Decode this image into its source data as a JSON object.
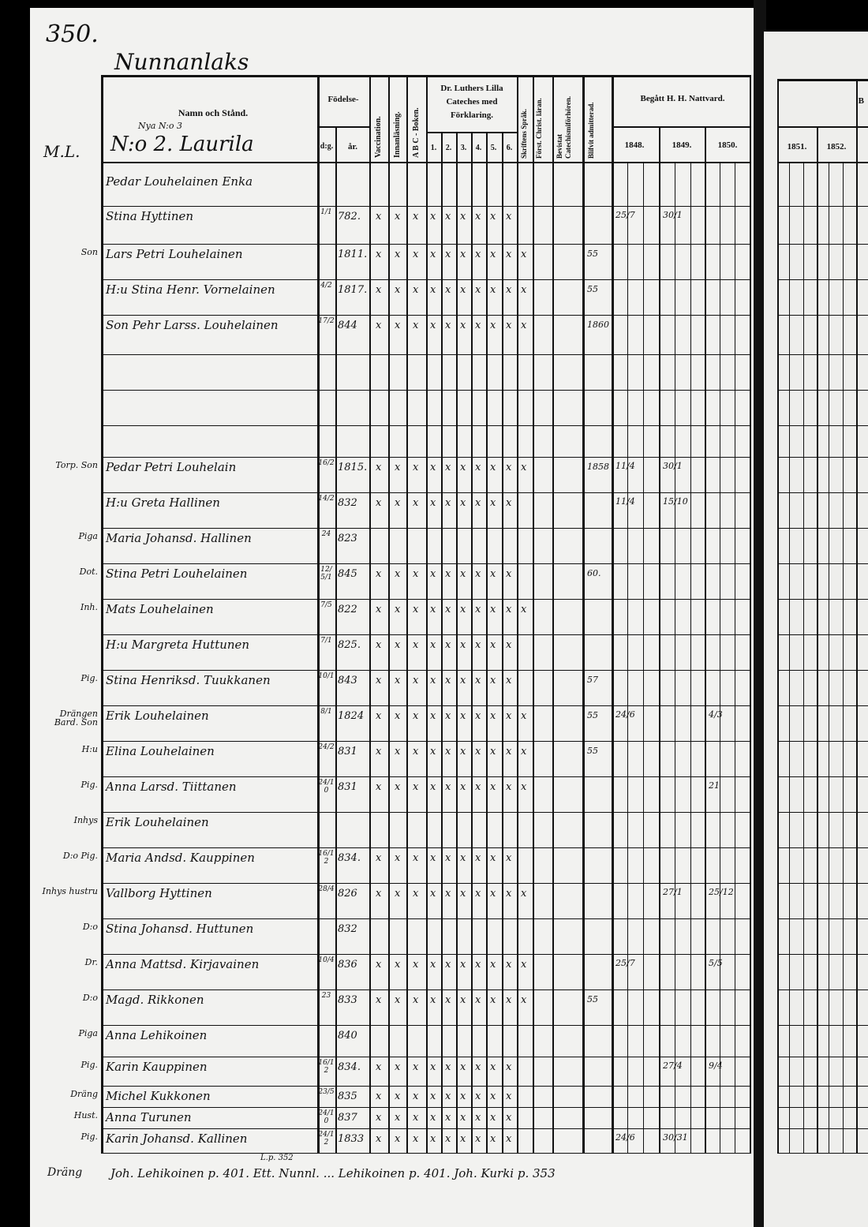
{
  "page_number": "350.",
  "village": "Nunnanlaks",
  "header": {
    "name_col": "Namn och Stånd.",
    "birth": "Födelse-",
    "day": "d:g.",
    "year": "år.",
    "vaccination": "Vaccination.",
    "innanlasning": "Innanläsning.",
    "abc": "A B C - Boken.",
    "catechism": "Dr. Luthers Lilla Cateches med Förklaring.",
    "catechism_parts": [
      "1.",
      "2.",
      "3.",
      "4.",
      "5.",
      "6."
    ],
    "skriftens": "Skriftens Språk.",
    "forst": "Först. Christ. läran.",
    "bevistat": "Bevistat Catechismiförhören.",
    "blifvit": "Blifvit admitterad.",
    "communion": "Begått H. H. Nattvard.",
    "years": [
      "1848.",
      "1849.",
      "1850."
    ],
    "right_years": [
      "1851.",
      "1852."
    ],
    "right_partial": "B"
  },
  "household": {
    "left_note": "M.L.",
    "old_no": "Nya N:o 3",
    "title": "N:o 2. Laurila"
  },
  "rows": [
    {
      "left": "",
      "name": "Pedar Louhelainen Enka",
      "day": "",
      "year": "",
      "marks": 0
    },
    {
      "left": "",
      "name": "Stina Hyttinen",
      "day": "1/1",
      "year": "782.",
      "marks": 9,
      "adm": "",
      "c1": "25/7",
      "c2": "30/1"
    },
    {
      "left": "Son",
      "name": "Lars Petri Louhelainen",
      "day": "",
      "year": "1811.",
      "marks": 10,
      "adm": "55"
    },
    {
      "left": "",
      "name": "H:u Stina Henr. Vornelainen",
      "day": "4/2",
      "year": "1817.",
      "marks": 10,
      "adm": "55"
    },
    {
      "left": "",
      "name": "Son Pehr Larss. Louhelainen",
      "day": "17/2",
      "year": "844",
      "marks": 10,
      "adm": "1860"
    },
    {
      "left": "",
      "name": "",
      "day": "",
      "year": "",
      "marks": 0
    },
    {
      "left": "",
      "name": "",
      "day": "",
      "year": "",
      "marks": 0
    },
    {
      "left": "",
      "name": "",
      "day": "",
      "year": "",
      "marks": 0
    },
    {
      "left": "Torp. Son",
      "name": "Pedar Petri Louhelain",
      "day": "16/2",
      "year": "1815.",
      "marks": 10,
      "adm": "1858",
      "c1": "11/4",
      "c2": "30/1"
    },
    {
      "left": "",
      "name": "H:u Greta Hallinen",
      "day": "14/2",
      "year": "832",
      "marks": 9,
      "c1": "11/4",
      "c2": "15/10"
    },
    {
      "left": "Piga",
      "name": "Maria Johansd. Hallinen",
      "day": "24",
      "year": "823",
      "marks": 0
    },
    {
      "left": "Dot.",
      "name": "Stina Petri Louhelainen",
      "day": "12/5/1",
      "year": "845",
      "marks": 9,
      "adm": "60."
    },
    {
      "left": "Inh.",
      "name": "Mats Louhelainen",
      "day": "7/5",
      "year": "822",
      "marks": 10
    },
    {
      "left": "",
      "name": "H:u Margreta Huttunen",
      "day": "7/1",
      "year": "825.",
      "marks": 9
    },
    {
      "left": "Pig.",
      "name": "Stina Henriksd. Tuukkanen",
      "day": "10/1",
      "year": "843",
      "marks": 9,
      "adm": "57"
    },
    {
      "left": "Drängen Bard. Son",
      "name": "Erik Louhelainen",
      "day": "8/1",
      "year": "1824",
      "marks": 10,
      "adm": "55",
      "c1": "24/6",
      "c3": "4/3"
    },
    {
      "left": "H:u",
      "name": "Elina Louhelainen",
      "day": "24/2",
      "year": "831",
      "marks": 10,
      "adm": "55"
    },
    {
      "left": "Pig.",
      "name": "Anna Larsd. Tiittanen",
      "day": "24/10",
      "year": "831",
      "marks": 10,
      "c3": "21"
    },
    {
      "left": "Inhys",
      "name": "Erik Louhelainen",
      "day": "",
      "year": "",
      "marks": 0
    },
    {
      "left": "D:o Pig.",
      "name": "Maria Andsd. Kauppinen",
      "day": "16/12",
      "year": "834.",
      "marks": 9
    },
    {
      "left": "Inhys hustru",
      "name": "Vallborg Hyttinen",
      "day": "28/4",
      "year": "826",
      "marks": 10,
      "c2": "27/1",
      "c3": "25/12"
    },
    {
      "left": "D:o",
      "name": "Stina Johansd. Huttunen",
      "day": "",
      "year": "832",
      "marks": 0
    },
    {
      "left": "Dr.",
      "name": "Anna Mattsd. Kirjavainen",
      "day": "10/4",
      "year": "836",
      "marks": 10,
      "c1": "25/7",
      "c3": "5/5"
    },
    {
      "left": "D:o",
      "name": "Magd. Rikkonen",
      "day": "23",
      "year": "833",
      "marks": 10,
      "adm": "55"
    },
    {
      "left": "Piga",
      "name": "Anna Lehikoinen",
      "day": "",
      "year": "840",
      "marks": 0
    },
    {
      "left": "Pig.",
      "name": "Karin Kauppinen",
      "day": "16/12",
      "year": "834.",
      "marks": 9,
      "c2": "27/4",
      "c3": "9/4"
    },
    {
      "left": "Dräng",
      "name": "Michel Kukkonen",
      "day": "23/5",
      "year": "835",
      "marks": 9
    },
    {
      "left": "Hust.",
      "name": "Anna Turunen",
      "day": "24/10",
      "year": "837",
      "marks": 9
    },
    {
      "left": "Pig.",
      "name": "Karin Johansd. Kallinen",
      "day": "24/12",
      "year": "1833",
      "marks": 9,
      "c1": "24/6",
      "c2": "30/31"
    }
  ],
  "bottom_note": {
    "left": "Dräng",
    "text": "Joh. Lehikoinen p. 401. Ett. Nunnl. ... Lehikoinen p. 401. Joh. Kurki p. 353",
    "ref": "L.p. 352"
  }
}
